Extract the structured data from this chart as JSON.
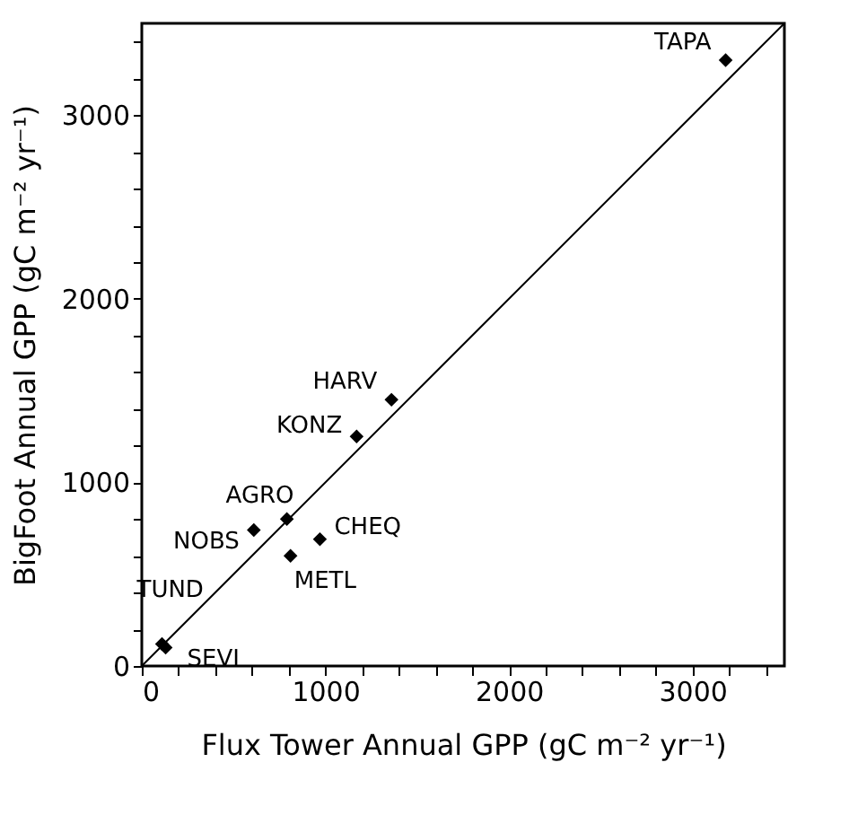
{
  "chart_data": {
    "type": "scatter",
    "xlabel": "Flux Tower Annual GPP (gC m⁻² yr⁻¹)",
    "ylabel": "BigFoot Annual GPP (gC m⁻² yr⁻¹)",
    "x": [
      3180,
      1360,
      1170,
      790,
      610,
      970,
      810,
      110,
      130
    ],
    "series": [
      {
        "color": "#000000",
        "marker": "diamond",
        "values": [
          3300,
          1450,
          1250,
          800,
          740,
          690,
          600,
          120,
          100
        ]
      },
      {
        "type": "line",
        "color": "#000000",
        "marker": "none",
        "x": [
          0,
          3500
        ],
        "values": [
          0,
          3500
        ]
      }
    ],
    "annotations": [
      {
        "text": "TAPA",
        "x": 3180,
        "y": 3300
      },
      {
        "text": "HARV",
        "x": 1360,
        "y": 1450
      },
      {
        "text": "KONZ",
        "x": 1170,
        "y": 1250
      },
      {
        "text": "AGRO",
        "x": 790,
        "y": 800
      },
      {
        "text": "NOBS",
        "x": 610,
        "y": 740
      },
      {
        "text": "CHEQ",
        "x": 970,
        "y": 690
      },
      {
        "text": "METL",
        "x": 810,
        "y": 600
      },
      {
        "text": "TUND",
        "x": 110,
        "y": 120
      },
      {
        "text": "SEVI",
        "x": 130,
        "y": 100
      }
    ],
    "xlim": [
      0,
      3500
    ],
    "ylim": [
      0,
      3500
    ],
    "xticks": [
      0,
      {
        "value": 200,
        "label": null
      },
      {
        "value": 400,
        "label": null
      },
      {
        "value": 600,
        "label": null
      },
      {
        "value": 800,
        "label": null
      },
      1000,
      {
        "value": 1200,
        "label": null
      },
      {
        "value": 1400,
        "label": null
      },
      {
        "value": 1600,
        "label": null
      },
      {
        "value": 1800,
        "label": null
      },
      2000,
      {
        "value": 2200,
        "label": null
      },
      {
        "value": 2400,
        "label": null
      },
      {
        "value": 2600,
        "label": null
      },
      {
        "value": 2800,
        "label": null
      },
      3000,
      {
        "value": 3200,
        "label": null
      },
      {
        "value": 3400,
        "label": null
      }
    ],
    "yticks": [
      0,
      {
        "value": 200,
        "label": null
      },
      {
        "value": 400,
        "label": null
      },
      {
        "value": 600,
        "label": null
      },
      {
        "value": 800,
        "label": null
      },
      1000,
      {
        "value": 1200,
        "label": null
      },
      {
        "value": 1400,
        "label": null
      },
      {
        "value": 1600,
        "label": null
      },
      {
        "value": 1800,
        "label": null
      },
      2000,
      {
        "value": 2200,
        "label": null
      },
      {
        "value": 2400,
        "label": null
      },
      {
        "value": 2600,
        "label": null
      },
      {
        "value": 2800,
        "label": null
      },
      3000,
      {
        "value": 3200,
        "label": null
      },
      {
        "value": 3400,
        "label": null
      }
    ],
    "grid": false
  }
}
